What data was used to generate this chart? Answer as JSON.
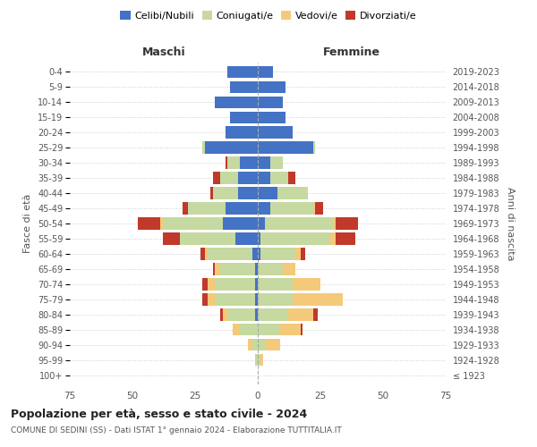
{
  "age_groups": [
    "100+",
    "95-99",
    "90-94",
    "85-89",
    "80-84",
    "75-79",
    "70-74",
    "65-69",
    "60-64",
    "55-59",
    "50-54",
    "45-49",
    "40-44",
    "35-39",
    "30-34",
    "25-29",
    "20-24",
    "15-19",
    "10-14",
    "5-9",
    "0-4"
  ],
  "birth_years": [
    "≤ 1923",
    "1924-1928",
    "1929-1933",
    "1934-1938",
    "1939-1943",
    "1944-1948",
    "1949-1953",
    "1954-1958",
    "1959-1963",
    "1964-1968",
    "1969-1973",
    "1974-1978",
    "1979-1983",
    "1984-1988",
    "1989-1993",
    "1994-1998",
    "1999-2003",
    "2004-2008",
    "2009-2013",
    "2014-2018",
    "2019-2023"
  ],
  "male": {
    "celibi": [
      0,
      0,
      0,
      0,
      1,
      1,
      1,
      1,
      2,
      9,
      14,
      13,
      8,
      8,
      7,
      21,
      13,
      11,
      17,
      11,
      12
    ],
    "coniugati": [
      0,
      1,
      2,
      7,
      11,
      16,
      16,
      14,
      18,
      22,
      24,
      15,
      10,
      7,
      5,
      1,
      0,
      0,
      0,
      0,
      0
    ],
    "vedovi": [
      0,
      0,
      2,
      3,
      2,
      3,
      3,
      2,
      1,
      0,
      1,
      0,
      0,
      0,
      0,
      0,
      0,
      0,
      0,
      0,
      0
    ],
    "divorziati": [
      0,
      0,
      0,
      0,
      1,
      2,
      2,
      1,
      2,
      7,
      9,
      2,
      1,
      3,
      1,
      0,
      0,
      0,
      0,
      0,
      0
    ]
  },
  "female": {
    "nubili": [
      0,
      0,
      0,
      0,
      0,
      0,
      0,
      0,
      1,
      1,
      3,
      5,
      8,
      5,
      5,
      22,
      14,
      11,
      10,
      11,
      6
    ],
    "coniugate": [
      0,
      1,
      3,
      9,
      12,
      14,
      14,
      10,
      14,
      28,
      27,
      17,
      12,
      7,
      5,
      1,
      0,
      0,
      0,
      0,
      0
    ],
    "vedove": [
      0,
      1,
      6,
      8,
      10,
      20,
      11,
      5,
      2,
      2,
      1,
      1,
      0,
      0,
      0,
      0,
      0,
      0,
      0,
      0,
      0
    ],
    "divorziate": [
      0,
      0,
      0,
      1,
      2,
      0,
      0,
      0,
      2,
      8,
      9,
      3,
      0,
      3,
      0,
      0,
      0,
      0,
      0,
      0,
      0
    ]
  },
  "colors": {
    "celibi_nubili": "#4472c4",
    "coniugati_e": "#c5d9a0",
    "vedovi_e": "#f5c97a",
    "divorziati_e": "#c0392b"
  },
  "xlim": 75,
  "title": "Popolazione per età, sesso e stato civile - 2024",
  "subtitle": "COMUNE DI SEDINI (SS) - Dati ISTAT 1° gennaio 2024 - Elaborazione TUTTITALIA.IT",
  "ylabel_left": "Fasce di età",
  "ylabel_right": "Anni di nascita",
  "xlabel_left": "Maschi",
  "xlabel_right": "Femmine",
  "legend_labels": [
    "Celibi/Nubili",
    "Coniugati/e",
    "Vedovi/e",
    "Divorziati/e"
  ],
  "background_color": "#ffffff"
}
